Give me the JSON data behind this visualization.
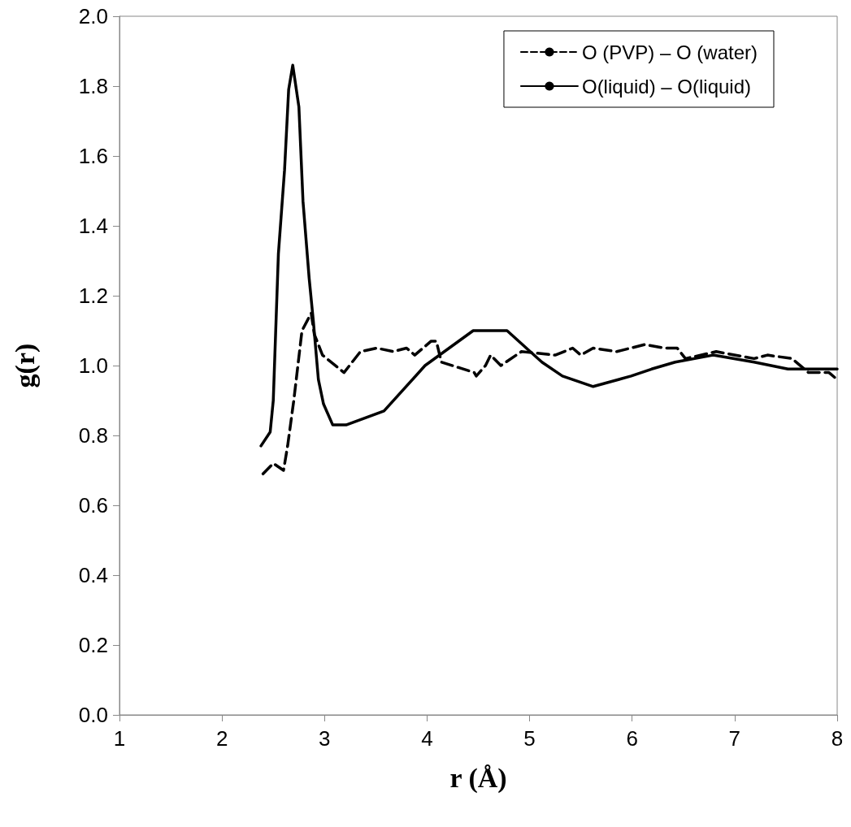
{
  "chart_data": {
    "type": "line",
    "xlabel": "r (Å)",
    "ylabel": "g(r)",
    "xlim": [
      1,
      8
    ],
    "xticks": [
      1,
      2,
      3,
      4,
      5,
      6,
      7,
      8
    ],
    "ylim": [
      0,
      2
    ],
    "yticks": [
      {
        "value": 0,
        "label": "0.0"
      },
      0.2,
      0.4,
      0.6,
      0.8,
      {
        "value": 1,
        "label": "1.0"
      },
      1.2,
      1.4,
      1.6,
      1.8,
      {
        "value": 2,
        "label": "2.0"
      }
    ],
    "grid": false,
    "legend": "top right",
    "marker": "none",
    "series": [
      {
        "name": "O (PVP) – O (water)",
        "color": "#000000",
        "line_style": "dashed",
        "x": [
          2.4,
          2.5,
          2.6,
          2.64,
          2.7,
          2.74,
          2.78,
          2.87,
          2.9,
          2.98,
          3.19,
          3.35,
          3.51,
          3.67,
          3.8,
          3.88,
          4.04,
          4.09,
          4.14,
          4.46,
          4.48,
          4.57,
          4.62,
          4.72,
          4.92,
          5.25,
          5.42,
          5.5,
          5.62,
          5.85,
          6.12,
          6.32,
          6.44,
          6.52,
          6.82,
          7.19,
          7.32,
          7.56,
          7.72,
          7.92,
          8.0
        ],
        "values": [
          0.69,
          0.72,
          0.7,
          0.77,
          0.9,
          1.0,
          1.1,
          1.15,
          1.09,
          1.03,
          0.98,
          1.04,
          1.05,
          1.04,
          1.05,
          1.03,
          1.07,
          1.07,
          1.01,
          0.98,
          0.97,
          1.0,
          1.03,
          1.0,
          1.04,
          1.03,
          1.05,
          1.03,
          1.05,
          1.04,
          1.06,
          1.05,
          1.05,
          1.02,
          1.04,
          1.02,
          1.03,
          1.02,
          0.98,
          0.98,
          0.96
        ]
      },
      {
        "name": "O(liquid) – O(liquid)",
        "color": "#000000",
        "line_style": "solid",
        "x": [
          2.38,
          2.47,
          2.5,
          2.55,
          2.61,
          2.65,
          2.69,
          2.75,
          2.79,
          2.85,
          2.89,
          2.94,
          2.99,
          3.08,
          3.21,
          3.58,
          3.98,
          4.45,
          4.78,
          5.12,
          5.32,
          5.62,
          5.99,
          6.19,
          6.42,
          6.79,
          7.19,
          7.52,
          8.0
        ],
        "values": [
          0.77,
          0.81,
          0.9,
          1.32,
          1.56,
          1.79,
          1.86,
          1.74,
          1.47,
          1.25,
          1.13,
          0.96,
          0.89,
          0.83,
          0.83,
          0.87,
          1.0,
          1.1,
          1.1,
          1.01,
          0.97,
          0.94,
          0.97,
          0.99,
          1.01,
          1.03,
          1.01,
          0.99,
          0.99
        ]
      }
    ]
  }
}
